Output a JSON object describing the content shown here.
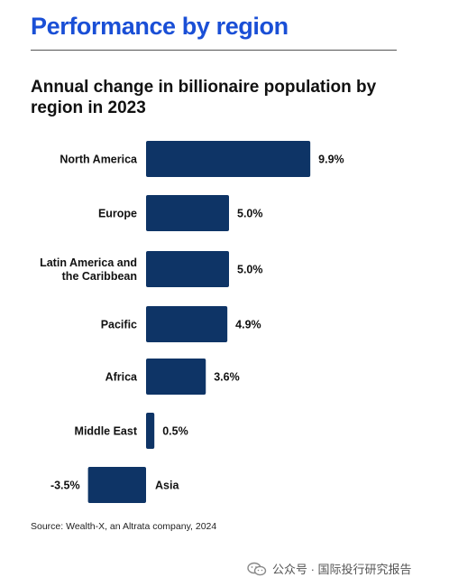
{
  "header": {
    "title": "Performance by region"
  },
  "chart_data": {
    "type": "bar",
    "orientation": "horizontal",
    "title": "Annual change in billionaire population by region in 2023",
    "categories": [
      "North America",
      "Europe",
      "Latin America and the Caribbean",
      "Pacific",
      "Africa",
      "Middle East",
      "Asia"
    ],
    "category_lines": [
      [
        "North America"
      ],
      [
        "Europe"
      ],
      [
        "Latin America and",
        "the Caribbean"
      ],
      [
        "Pacific"
      ],
      [
        "Africa"
      ],
      [
        "Middle East"
      ],
      [
        "Asia"
      ]
    ],
    "values": [
      9.9,
      5.0,
      5.0,
      4.9,
      3.6,
      0.5,
      -3.5
    ],
    "data_labels": [
      "9.9%",
      "5.0%",
      "5.0%",
      "4.9%",
      "3.6%",
      "0.5%",
      "-3.5%"
    ],
    "xlim": [
      -3.5,
      9.9
    ],
    "bar_color": "#0e3466",
    "grid": false,
    "legend": "none"
  },
  "source": "Source: Wealth-X, an Altrata company, 2024",
  "watermark": {
    "text": "公众号 · 国际投行研究报告",
    "icon": "wechat-icon"
  }
}
